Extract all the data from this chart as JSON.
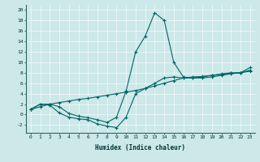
{
  "xlabel": "Humidex (Indice chaleur)",
  "ylabel": "",
  "background_color": "#cce8e8",
  "line_color": "#006666",
  "xlim": [
    -0.5,
    23.5
  ],
  "ylim": [
    -3.5,
    21
  ],
  "yticks": [
    -2,
    0,
    2,
    4,
    6,
    8,
    10,
    12,
    14,
    16,
    18,
    20
  ],
  "xticks": [
    0,
    1,
    2,
    3,
    4,
    5,
    6,
    7,
    8,
    9,
    10,
    11,
    12,
    13,
    14,
    15,
    16,
    17,
    18,
    19,
    20,
    21,
    22,
    23
  ],
  "line1_x": [
    0,
    1,
    2,
    3,
    4,
    5,
    6,
    7,
    8,
    9,
    10,
    11,
    12,
    13,
    14,
    15,
    16,
    17,
    18,
    19,
    20,
    21,
    22,
    23
  ],
  "line1_y": [
    1,
    2,
    2,
    1.5,
    0.2,
    -0.3,
    -0.6,
    -1.0,
    -1.5,
    -0.5,
    4.5,
    12,
    15,
    19.5,
    18,
    10,
    7.2,
    7.0,
    7.2,
    7.5,
    7.8,
    8.0,
    8.0,
    9.0
  ],
  "line2_x": [
    0,
    1,
    2,
    3,
    4,
    5,
    6,
    7,
    8,
    9,
    10,
    11,
    12,
    13,
    14,
    15,
    16,
    17,
    18,
    19,
    20,
    21,
    22,
    23
  ],
  "line2_y": [
    1,
    2,
    1.8,
    0.3,
    -0.5,
    -0.8,
    -1.0,
    -1.8,
    -2.2,
    -2.5,
    -0.5,
    4.0,
    5.0,
    6.0,
    7.0,
    7.2,
    7.0,
    7.0,
    7.0,
    7.2,
    7.5,
    7.8,
    8.0,
    8.5
  ],
  "line3_x": [
    0,
    1,
    2,
    3,
    4,
    5,
    6,
    7,
    8,
    9,
    10,
    11,
    12,
    13,
    14,
    15,
    16,
    17,
    18,
    19,
    20,
    21,
    22,
    23
  ],
  "line3_y": [
    1.0,
    1.5,
    2.0,
    2.3,
    2.6,
    2.9,
    3.1,
    3.4,
    3.7,
    4.0,
    4.3,
    4.6,
    5.0,
    5.5,
    6.0,
    6.5,
    7.0,
    7.2,
    7.3,
    7.5,
    7.7,
    7.9,
    8.0,
    8.3
  ]
}
